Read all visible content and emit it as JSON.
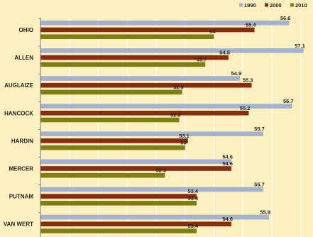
{
  "colors": {
    "background": "#fdf0c0",
    "gridline": "#ffffff",
    "axis": "#777777",
    "text": "#222222"
  },
  "chart_data": {
    "type": "bar",
    "orientation": "horizontal",
    "categories": [
      "OHIO",
      "ALLEN",
      "AUGLAIZE",
      "HANCOCK",
      "HARDIN",
      "MERCER",
      "PUTNAM",
      "VAN WERT"
    ],
    "series": [
      {
        "name": "1990",
        "color": "#a3b3cf",
        "values": [
          56.6,
          57.1,
          54.9,
          56.7,
          55.7,
          54.6,
          55.7,
          55.9
        ]
      },
      {
        "name": "2000",
        "color": "#8b2b0e",
        "values": [
          55.4,
          54.5,
          55.3,
          55.2,
          53.1,
          54.6,
          53.4,
          54.6
        ]
      },
      {
        "name": "2010",
        "color": "#7e7f13",
        "values": [
          54.0,
          53.7,
          52.9,
          52.8,
          53.0,
          52.3,
          53.4,
          53.4
        ]
      }
    ],
    "title": "",
    "xlabel": "",
    "ylabel": "",
    "legend_position": "top-right",
    "grid": true,
    "data_labels": true,
    "xlim": [
      48.0,
      57.3
    ]
  }
}
